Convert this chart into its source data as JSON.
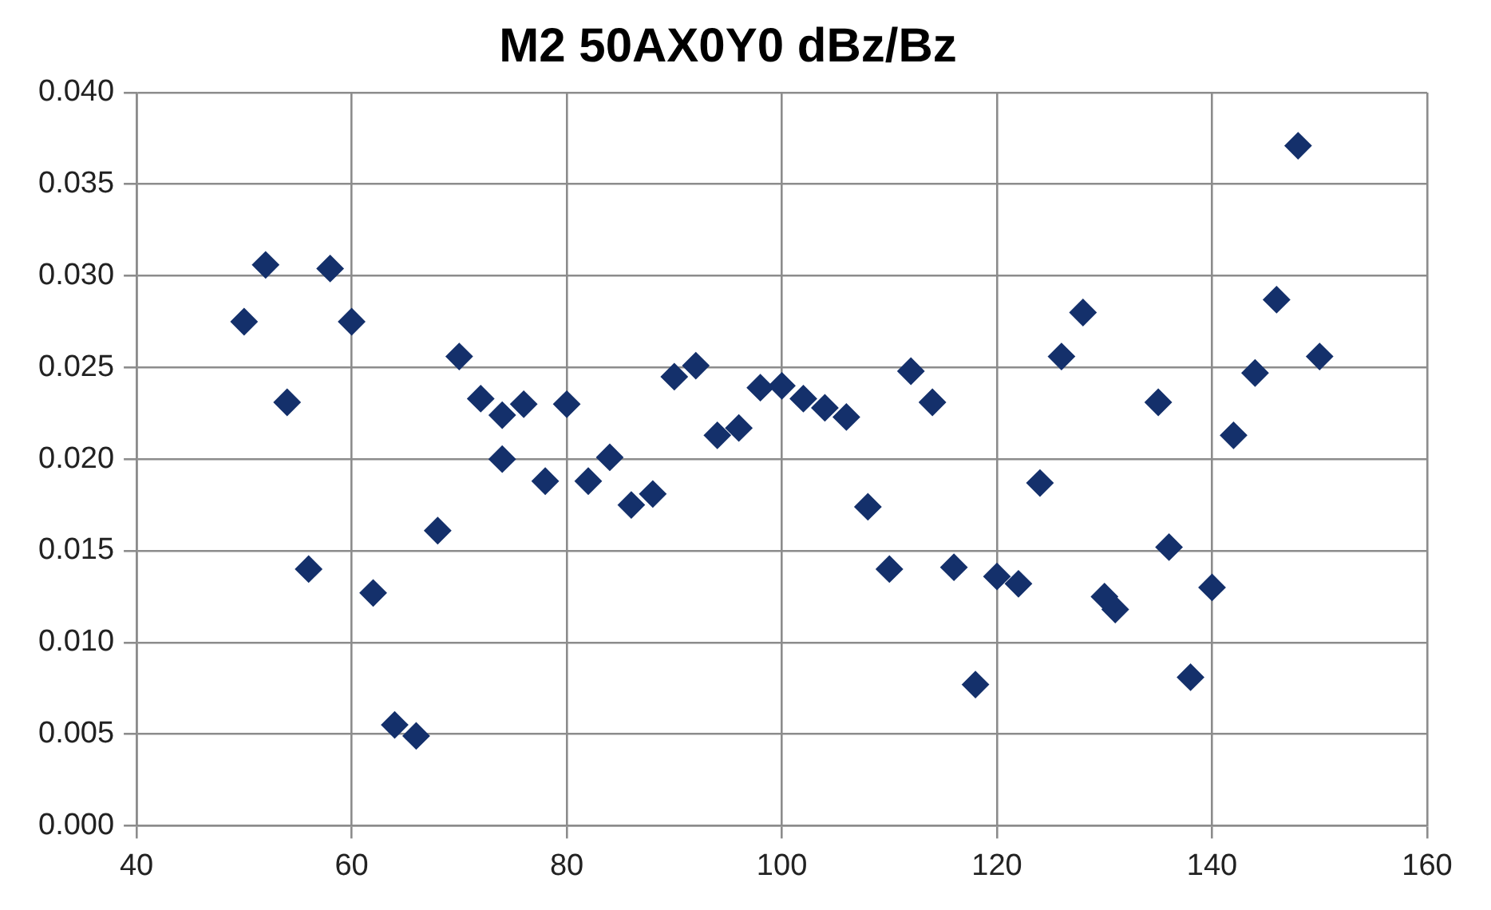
{
  "chart_data": {
    "type": "scatter",
    "title": "M2 50AX0Y0 dBz/Bz",
    "x": [
      50,
      52,
      54,
      56,
      58,
      60,
      62,
      64,
      66,
      68,
      70,
      72,
      74,
      74,
      76,
      78,
      80,
      82,
      84,
      86,
      88,
      90,
      92,
      94,
      96,
      98,
      100,
      102,
      104,
      106,
      108,
      110,
      112,
      114,
      116,
      118,
      120,
      122,
      124,
      126,
      128,
      130,
      131,
      135,
      136,
      138,
      140,
      142,
      144,
      146,
      148,
      150
    ],
    "series": [
      {
        "color": "#14306b",
        "values": [
          0.0275,
          0.0306,
          0.0231,
          0.014,
          0.0304,
          0.0275,
          0.0127,
          0.0055,
          0.0049,
          0.0161,
          0.0256,
          0.0233,
          0.0224,
          0.02,
          0.023,
          0.0188,
          0.023,
          0.0188,
          0.0201,
          0.0175,
          0.0181,
          0.0245,
          0.0251,
          0.0213,
          0.0217,
          0.0239,
          0.024,
          0.0233,
          0.0228,
          0.0223,
          0.0174,
          0.014,
          0.0248,
          0.0231,
          0.0141,
          0.0077,
          0.0136,
          0.0132,
          0.0187,
          0.0256,
          0.028,
          0.0125,
          0.0118,
          0.0231,
          0.0152,
          0.0081,
          0.013,
          0.0213,
          0.0247,
          0.0287,
          0.0371,
          0.0256
        ]
      }
    ],
    "xlim": [
      40,
      160
    ],
    "xticks": [
      40,
      60,
      80,
      100,
      120,
      140,
      160
    ],
    "ylim": [
      0,
      0.04
    ],
    "yticks": [
      {
        "value": 0,
        "label": "0.000"
      },
      {
        "value": 0.005,
        "label": "0.005"
      },
      {
        "value": 0.01,
        "label": "0.010"
      },
      {
        "value": 0.015,
        "label": "0.015"
      },
      {
        "value": 0.02,
        "label": "0.020"
      },
      {
        "value": 0.025,
        "label": "0.025"
      },
      {
        "value": 0.03,
        "label": "0.030"
      },
      {
        "value": 0.035,
        "label": "0.035"
      },
      {
        "value": 0.04,
        "label": "0.040"
      }
    ],
    "grid": true,
    "marker": "diamond"
  }
}
